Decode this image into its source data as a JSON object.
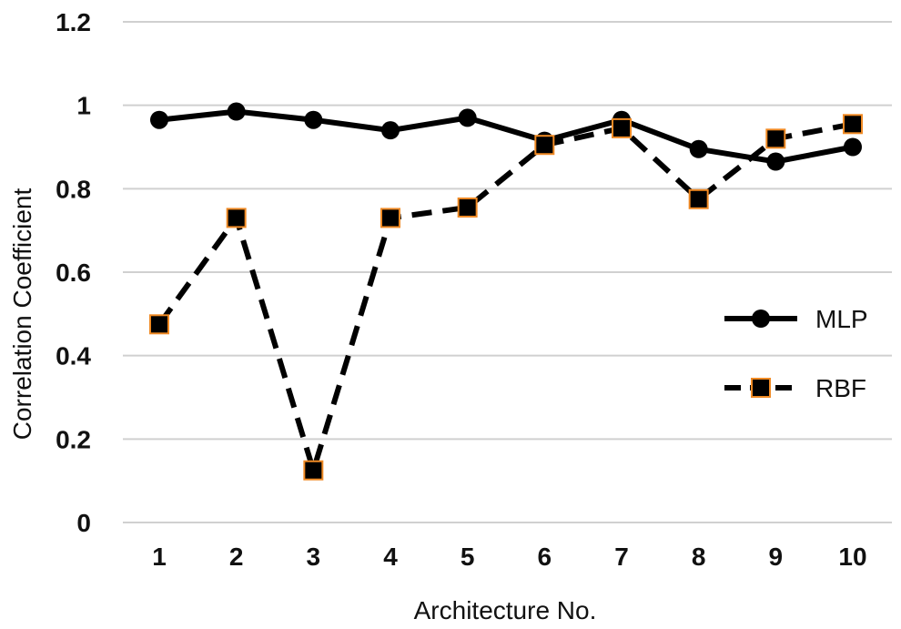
{
  "chart_data": {
    "type": "line",
    "title": "",
    "xlabel": "Architecture No.",
    "ylabel": "Correlation Coefficient",
    "x": [
      1,
      2,
      3,
      4,
      5,
      6,
      7,
      8,
      9,
      10
    ],
    "x_tick_labels": [
      "1",
      "2",
      "3",
      "4",
      "5",
      "6",
      "7",
      "8",
      "9",
      "10"
    ],
    "y_tick_labels": [
      "0",
      "0.2",
      "0.4",
      "0.6",
      "0.8",
      "1",
      "1.2"
    ],
    "ylim": [
      0,
      1.2
    ],
    "grid": "horizontal",
    "legend_position": "right",
    "series": [
      {
        "name": "MLP",
        "values": [
          0.965,
          0.985,
          0.965,
          0.94,
          0.97,
          0.915,
          0.965,
          0.895,
          0.865,
          0.9
        ],
        "line_style": "solid",
        "marker": "circle",
        "color": "#000000",
        "marker_fill": "#000000"
      },
      {
        "name": "RBF",
        "values": [
          0.475,
          0.73,
          0.125,
          0.73,
          0.755,
          0.905,
          0.945,
          0.775,
          0.92,
          0.955
        ],
        "line_style": "dashed",
        "marker": "square",
        "color": "#000000",
        "marker_fill": "#000000",
        "marker_outline": "#f08a24"
      }
    ]
  },
  "colors": {
    "grid": "#d0d0d0",
    "text": "#111111"
  }
}
